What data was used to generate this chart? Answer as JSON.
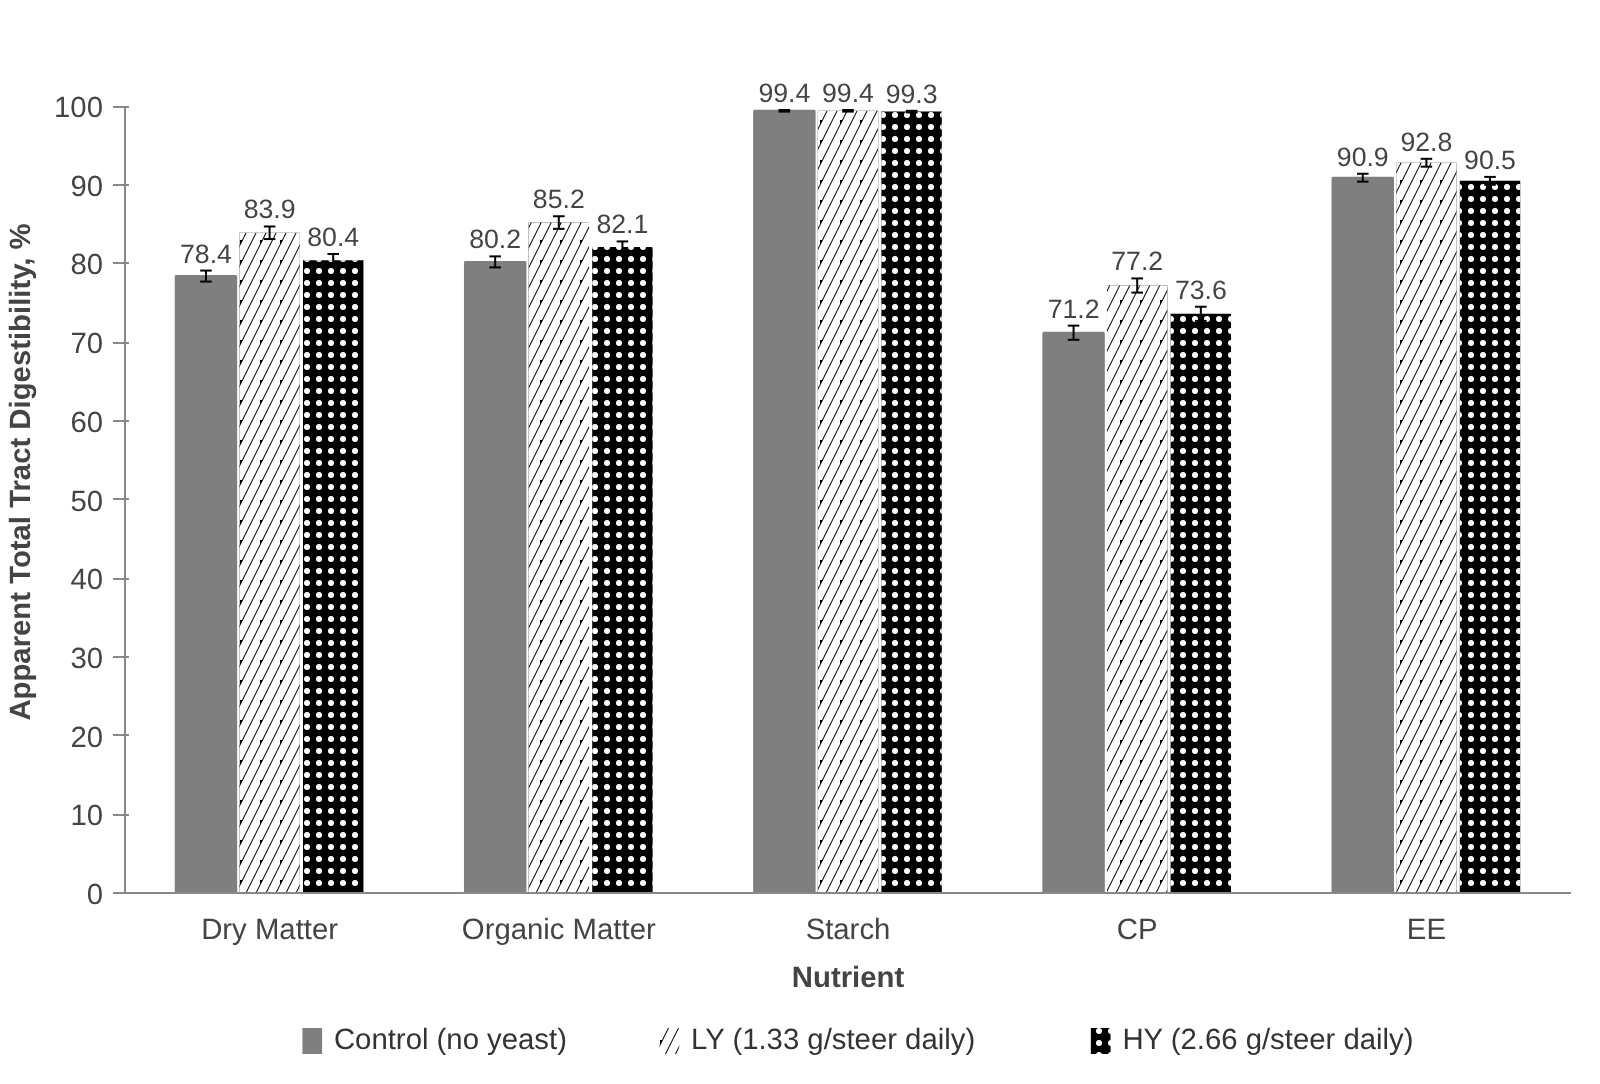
{
  "chart_data": {
    "type": "bar",
    "xlabel": "Nutrient",
    "ylabel": "Apparent Total Tract Digestibility, %",
    "categories": [
      "Dry Matter",
      "Organic Matter",
      "Starch",
      "CP",
      "EE"
    ],
    "series": [
      {
        "name": "Control (no yeast)",
        "color": "#7f7f7f",
        "values": [
          78.4,
          80.2,
          99.4,
          71.2,
          90.9
        ],
        "errors": [
          0.7,
          0.7,
          0.1,
          0.9,
          0.5
        ]
      },
      {
        "name": "LY (1.33 g/steer daily)",
        "color": "#000000",
        "values": [
          83.9,
          85.2,
          99.4,
          77.2,
          92.8
        ],
        "errors": [
          0.8,
          0.8,
          0.1,
          0.9,
          0.5
        ]
      },
      {
        "name": "HY (2.66 g/steer daily)",
        "color": "#000000",
        "values": [
          80.4,
          82.1,
          99.3,
          73.6,
          90.5
        ],
        "errors": [
          0.8,
          0.7,
          0.1,
          0.9,
          0.5
        ]
      }
    ],
    "ylim": [
      0,
      100
    ],
    "yticks": [
      0,
      10,
      20,
      30,
      40,
      50,
      60,
      70,
      80,
      90,
      100
    ],
    "data_labels": true,
    "legend": "bottom"
  }
}
